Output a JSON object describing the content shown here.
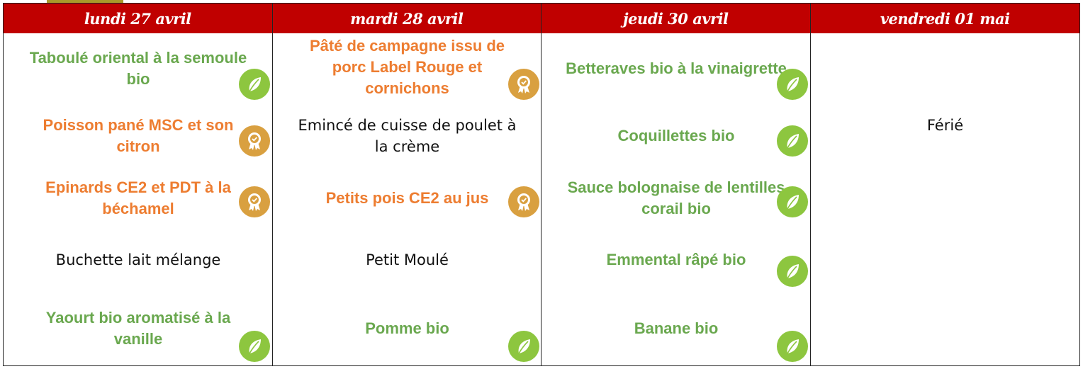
{
  "colors": {
    "header": "#c00000",
    "bio": "#6aa84f",
    "label_rouge": "#ed7d31",
    "leaf_icon": "#8dc63f",
    "medal_icon": "#d9a040"
  },
  "days": [
    {
      "title": "lundi 27 avril",
      "dishes": [
        {
          "name": "Taboulé oriental à la semoule bio",
          "type": "bio",
          "icon": "leaf-icon"
        },
        {
          "name": "Poisson pané MSC et son citron",
          "type": "label",
          "icon": "medal-icon"
        },
        {
          "name": "Epinards CE2 et PDT à la béchamel",
          "type": "label",
          "icon": "medal-icon"
        },
        {
          "name": "Buchette lait mélange",
          "type": "plain",
          "icon": ""
        },
        {
          "name": "Yaourt bio aromatisé à la vanille",
          "type": "bio",
          "icon": "leaf-icon"
        }
      ]
    },
    {
      "title": "mardi 28 avril",
      "dishes": [
        {
          "name": "Pâté de campagne issu de porc Label Rouge et cornichons",
          "type": "label",
          "icon": "medal-icon"
        },
        {
          "name": "Emincé de cuisse de poulet à la crème",
          "type": "plain",
          "icon": ""
        },
        {
          "name": "Petits pois CE2 au jus",
          "type": "label",
          "icon": "medal-icon"
        },
        {
          "name": "Petit Moulé",
          "type": "plain",
          "icon": ""
        },
        {
          "name": "Pomme bio",
          "type": "bio",
          "icon": "leaf-icon"
        }
      ]
    },
    {
      "title": "jeudi 30 avril",
      "dishes": [
        {
          "name": "Betteraves bio à la vinaigrette",
          "type": "bio",
          "icon": "leaf-icon"
        },
        {
          "name": "Coquillettes bio",
          "type": "bio",
          "icon": "leaf-icon"
        },
        {
          "name": "Sauce bolognaise de lentilles corail bio",
          "type": "bio",
          "icon": "leaf-icon"
        },
        {
          "name": "Emmental râpé bio",
          "type": "bio",
          "icon": "leaf-icon"
        },
        {
          "name": "Banane bio",
          "type": "bio",
          "icon": "leaf-icon"
        }
      ]
    },
    {
      "title": "vendredi 01 mai",
      "note": "Férié",
      "dishes": []
    }
  ]
}
